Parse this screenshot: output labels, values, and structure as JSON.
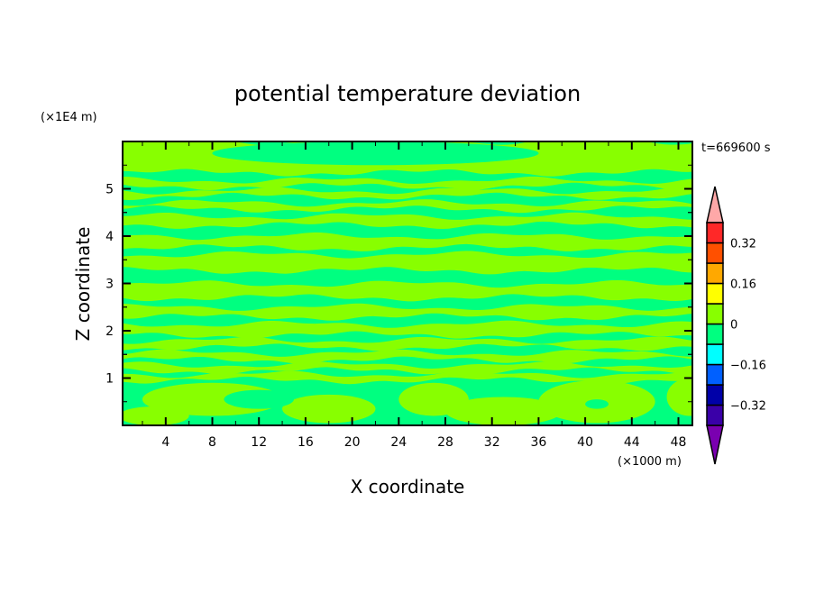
{
  "chart_data": {
    "type": "heatmap",
    "subtype": "filled-contour",
    "title": "potential temperature deviation",
    "xlabel": "X coordinate",
    "ylabel": "Z coordinate",
    "x_unit_label": "(×1000 m)",
    "y_unit_label": "(×1E4 m)",
    "time_label": "t=669600 s",
    "xlim": [
      0.3,
      49.2
    ],
    "ylim": [
      0,
      6
    ],
    "x_ticks": [
      4,
      8,
      12,
      16,
      20,
      24,
      28,
      32,
      36,
      40,
      44,
      48
    ],
    "x_tick_labels": [
      "4",
      "8",
      "12",
      "16",
      "20",
      "24",
      "28",
      "32",
      "36",
      "40",
      "44",
      "48"
    ],
    "y_ticks": [
      1,
      2,
      3,
      4,
      5
    ],
    "y_tick_labels": [
      "1",
      "2",
      "3",
      "4",
      "5"
    ],
    "colorbar": {
      "levels": [
        -0.4,
        -0.32,
        -0.24,
        -0.16,
        -0.08,
        0,
        0.08,
        0.16,
        0.24,
        0.32,
        0.4
      ],
      "colors": [
        "#3a00a8",
        "#0000a8",
        "#0060ff",
        "#00ffff",
        "#00ff80",
        "#88ff00",
        "#ffff00",
        "#ffa800",
        "#ff5000",
        "#ff2828"
      ],
      "under_color": "#7a00b0",
      "over_color": "#ffa8a8",
      "tick_values": [
        0.32,
        0.16,
        0,
        -0.16,
        -0.32
      ],
      "tick_labels": [
        "0.32",
        "0.16",
        "0",
        "−0.16",
        "−0.32"
      ]
    },
    "background_level_color": "#00ff80",
    "positive_bands_z": [
      [
        5.34,
        6.0
      ],
      [
        5.05,
        5.18
      ],
      [
        4.84,
        4.96
      ],
      [
        4.57,
        4.7
      ],
      [
        4.23,
        4.42
      ],
      [
        3.75,
        4.0
      ],
      [
        3.27,
        3.61
      ],
      [
        2.7,
        2.99
      ],
      [
        2.29,
        2.5
      ],
      [
        1.91,
        2.14
      ],
      [
        1.65,
        1.8
      ],
      [
        1.38,
        1.53
      ],
      [
        1.15,
        1.28
      ],
      [
        0.95,
        1.08
      ]
    ],
    "positive_blobs": [
      [
        8,
        0.55,
        6,
        0.35
      ],
      [
        18,
        0.35,
        4,
        0.3
      ],
      [
        27,
        0.55,
        3,
        0.35
      ],
      [
        33,
        0.3,
        5,
        0.3
      ],
      [
        41,
        0.5,
        5,
        0.45
      ],
      [
        49,
        0.6,
        2,
        0.4
      ],
      [
        3,
        0.2,
        3,
        0.2
      ]
    ],
    "negative_blobs_in_positive": [
      [
        22,
        5.75,
        14,
        0.25
      ],
      [
        41,
        0.45,
        1,
        0.1
      ],
      [
        12,
        0.55,
        3,
        0.2
      ]
    ]
  }
}
